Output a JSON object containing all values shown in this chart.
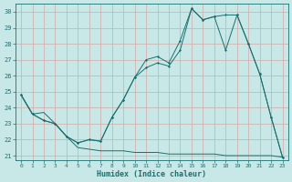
{
  "xlabel": "Humidex (Indice chaleur)",
  "bg_color": "#c8e8e8",
  "grid_color": "#d4a8a8",
  "line_color": "#1a7070",
  "xlim": [
    -0.5,
    23.5
  ],
  "ylim": [
    20.7,
    30.5
  ],
  "xticks": [
    0,
    1,
    2,
    3,
    4,
    5,
    6,
    7,
    8,
    9,
    10,
    11,
    12,
    13,
    14,
    15,
    16,
    17,
    18,
    19,
    20,
    21,
    22,
    23
  ],
  "yticks": [
    21,
    22,
    23,
    24,
    25,
    26,
    27,
    28,
    29,
    30
  ],
  "line1_x": [
    0,
    1,
    2,
    3,
    4,
    5,
    6,
    7,
    8,
    9,
    10,
    11,
    12,
    13,
    14,
    15,
    16,
    17,
    18,
    19,
    20,
    21,
    22,
    23
  ],
  "line1_y": [
    24.8,
    23.6,
    23.7,
    23.0,
    22.2,
    21.5,
    21.4,
    21.3,
    21.3,
    21.3,
    21.2,
    21.2,
    21.2,
    21.1,
    21.1,
    21.1,
    21.1,
    21.1,
    21.0,
    21.0,
    21.0,
    21.0,
    21.0,
    20.9
  ],
  "line2_x": [
    0,
    1,
    2,
    3,
    4,
    5,
    6,
    7,
    8,
    9,
    10,
    11,
    12,
    13,
    14,
    15,
    16,
    17,
    18,
    19,
    20,
    21,
    22,
    23
  ],
  "line2_y": [
    24.8,
    23.6,
    23.2,
    23.0,
    22.2,
    21.8,
    22.0,
    21.9,
    23.4,
    24.5,
    25.9,
    26.5,
    26.8,
    26.6,
    27.6,
    30.2,
    29.5,
    29.7,
    29.8,
    29.8,
    28.0,
    26.1,
    23.4,
    20.9
  ],
  "line3_x": [
    0,
    1,
    2,
    3,
    4,
    5,
    6,
    7,
    8,
    9,
    10,
    11,
    12,
    13,
    14,
    15,
    16,
    17,
    18,
    19,
    20,
    21,
    22,
    23
  ],
  "line3_y": [
    24.8,
    23.6,
    23.2,
    23.0,
    22.2,
    21.8,
    22.0,
    21.9,
    23.4,
    24.5,
    25.9,
    27.0,
    27.2,
    26.8,
    28.2,
    30.2,
    29.5,
    29.7,
    27.6,
    29.8,
    28.0,
    26.1,
    23.4,
    20.9
  ]
}
